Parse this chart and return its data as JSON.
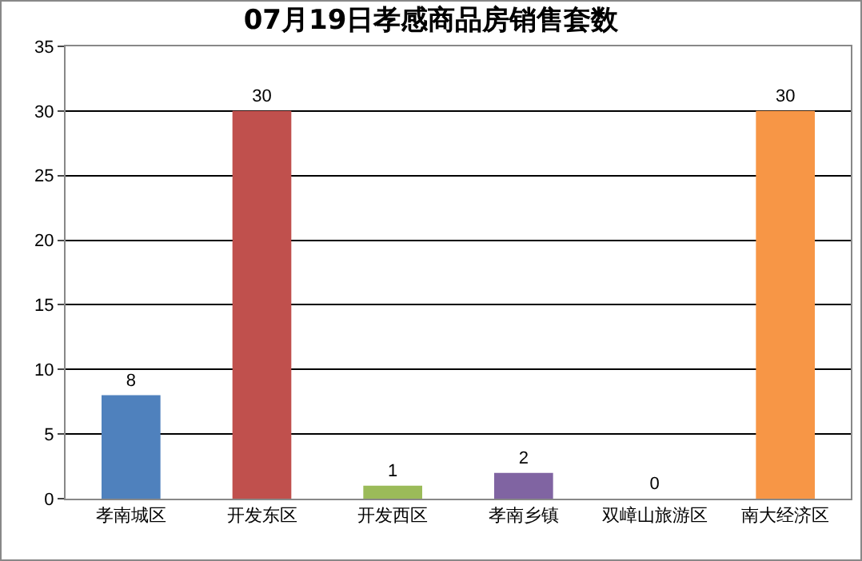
{
  "chart_data": {
    "type": "bar",
    "title": "07月19日孝感商品房销售套数",
    "categories": [
      "孝南城区",
      "开发东区",
      "开发西区",
      "孝南乡镇",
      "双嶂山旅游区",
      "南大经济区"
    ],
    "values": [
      8,
      30,
      1,
      2,
      0,
      30
    ],
    "colors": [
      "#4f81bd",
      "#c0504d",
      "#9bbb59",
      "#8064a2",
      "#4bacc6",
      "#f79646"
    ],
    "ylim": [
      0,
      35
    ],
    "yticks": [
      0,
      5,
      10,
      15,
      20,
      25,
      30,
      35
    ],
    "grid": "y",
    "data_labels": true,
    "legend": false
  }
}
